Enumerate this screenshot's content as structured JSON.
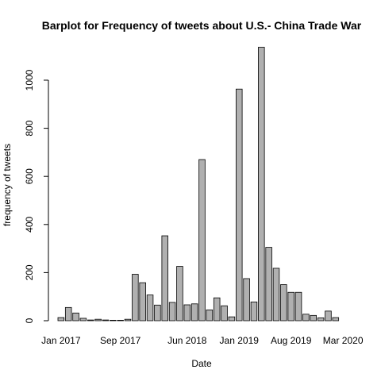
{
  "chart_data": {
    "type": "bar",
    "title": "Barplot for Frequency of tweets about U.S.- China Trade War",
    "xlabel": "Date",
    "ylabel": "frequency of tweets",
    "x_tick_labels": [
      "Jan 2017",
      "Sep 2017",
      "Jun 2018",
      "Jan 2019",
      "Aug 2019",
      "Mar 2020"
    ],
    "x_tick_bar_index": [
      0,
      8,
      17,
      24,
      31,
      38
    ],
    "y_ticks": [
      0,
      200,
      400,
      600,
      800,
      1000
    ],
    "ylim": [
      0,
      1140
    ],
    "values": [
      13,
      55,
      32,
      10,
      3,
      6,
      3,
      2,
      2,
      6,
      193,
      158,
      107,
      65,
      353,
      76,
      226,
      66,
      70,
      670,
      45,
      95,
      62,
      16,
      963,
      175,
      78,
      1137,
      305,
      218,
      150,
      118,
      118,
      27,
      22,
      12,
      40,
      13
    ],
    "bar_color": "#b0b0b0",
    "grid": false,
    "legend": false
  }
}
